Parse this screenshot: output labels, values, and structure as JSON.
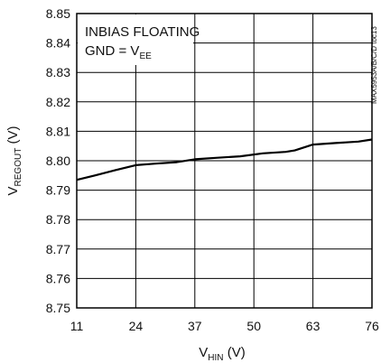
{
  "chart_data": {
    "type": "line",
    "xlabel": {
      "main": "V",
      "sub": "HIN",
      "unit": " (V)"
    },
    "ylabel": {
      "main": "V",
      "sub": "REGOUT",
      "unit": " (V)"
    },
    "xlim": [
      11,
      76
    ],
    "ylim": [
      8.75,
      8.85
    ],
    "x_ticks": [
      "11",
      "24",
      "37",
      "50",
      "63",
      "76"
    ],
    "y_ticks": [
      "8.75",
      "8.76",
      "8.77",
      "8.78",
      "8.79",
      "8.80",
      "8.81",
      "8.82",
      "8.83",
      "8.84",
      "8.85"
    ],
    "grid": true,
    "annotations": {
      "line1": "INBIAS FLOATING",
      "line2_main": "GND = V",
      "line2_sub": "EE",
      "code": "MAX5953A/B/C/D toc13"
    },
    "series": [
      {
        "color": "#000000",
        "x": [
          11,
          15,
          20,
          24,
          28,
          33,
          37,
          42,
          47,
          52,
          57,
          59,
          63,
          68,
          73,
          76
        ],
        "y": [
          8.7935,
          8.795,
          8.797,
          8.7985,
          8.799,
          8.7995,
          8.8005,
          8.801,
          8.8015,
          8.8025,
          8.803,
          8.8035,
          8.8055,
          8.806,
          8.8065,
          8.8072
        ]
      }
    ]
  }
}
